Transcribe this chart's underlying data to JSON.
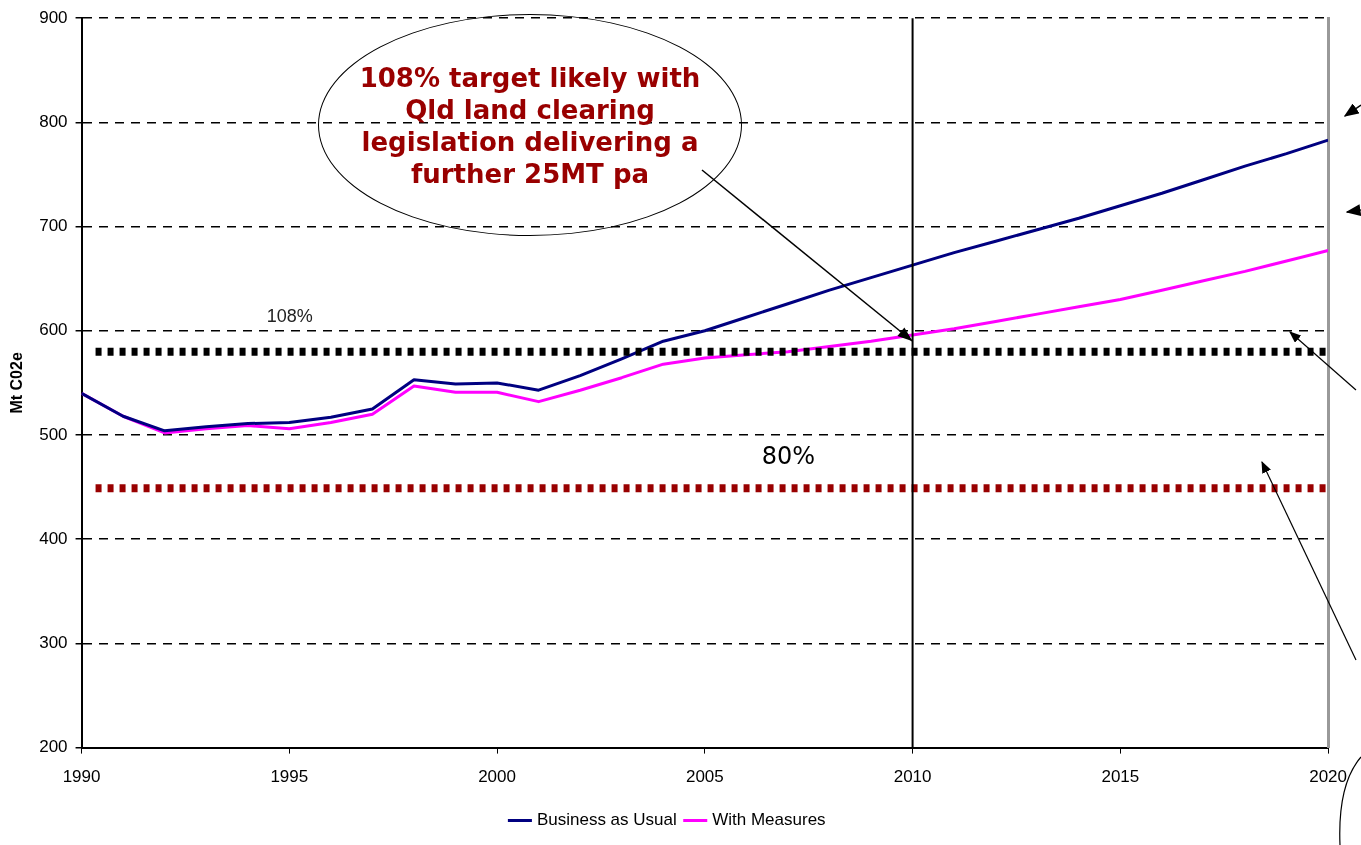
{
  "chart_data": {
    "type": "line",
    "ylabel": "Mt C02e",
    "x": [
      1990,
      1991,
      1992,
      1993,
      1994,
      1995,
      1996,
      1997,
      1998,
      1999,
      2000,
      2001,
      2002,
      2003,
      2004,
      2005,
      2006,
      2007,
      2008,
      2009,
      2010,
      2011,
      2012,
      2013,
      2014,
      2015,
      2016,
      2017,
      2018,
      2019,
      2020
    ],
    "series": [
      {
        "name": "Business as Usual",
        "color": "#000080",
        "values": [
          540,
          518,
          504,
          508,
          511,
          512,
          517,
          525,
          553,
          549,
          550,
          543,
          557,
          573,
          590,
          600,
          613,
          626,
          639,
          651,
          663,
          675,
          686,
          697,
          708,
          720,
          732,
          745,
          758,
          770,
          783
        ]
      },
      {
        "name": "With Measures",
        "color": "#ff00ff",
        "values": [
          540,
          518,
          502,
          506,
          509,
          506,
          512,
          520,
          547,
          541,
          541,
          532,
          543,
          555,
          568,
          574,
          577,
          580,
          585,
          590,
          596,
          602,
          609,
          616,
          623,
          630,
          639,
          648,
          657,
          667,
          677
        ]
      }
    ],
    "xlim": [
      1990,
      2020
    ],
    "xticks": [
      1990,
      1995,
      2000,
      2005,
      2010,
      2015,
      2020
    ],
    "ylim": [
      200,
      900
    ],
    "yticks": [
      200,
      300,
      400,
      500,
      600,
      700,
      800,
      900
    ],
    "grid": "y",
    "legend": "bottom",
    "marker": "none",
    "line_style": "solid",
    "ref_lines": [
      {
        "axis": "y",
        "value": 580,
        "color": "#000000",
        "line_style": "dotted"
      },
      {
        "axis": "y",
        "value": 449,
        "color": "#990000",
        "line_style": "dotted"
      },
      {
        "axis": "x",
        "value": 2010,
        "color": "#000000",
        "line_style": "solid"
      }
    ],
    "annotations": [
      {
        "text": "108% target likely with Qld land clearing legislation delivering a further 25MT pa",
        "x": 2010,
        "y": 590
      },
      "108%",
      "80%"
    ]
  }
}
